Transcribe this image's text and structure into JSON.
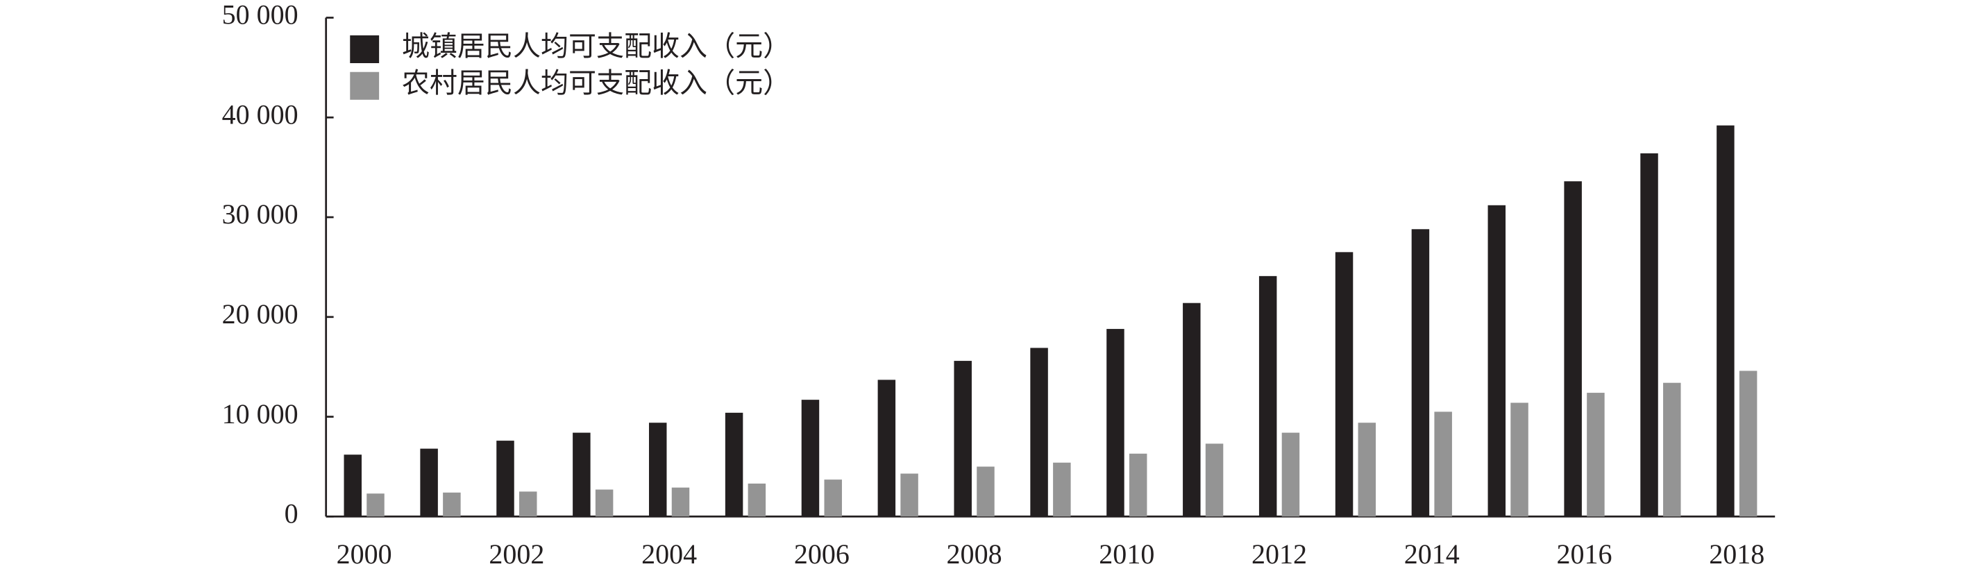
{
  "chart_data": {
    "type": "bar",
    "categories": [
      "2000",
      null,
      "2002",
      null,
      "2004",
      null,
      "2006",
      null,
      "2008",
      null,
      "2010",
      null,
      "2012",
      null,
      "2014",
      null,
      "2016",
      null,
      "2018"
    ],
    "series": [
      {
        "name": "城镇居民人均可支配收入（元）",
        "color": "#231f20",
        "values": [
          6200,
          6800,
          7600,
          8400,
          9400,
          10400,
          11700,
          13700,
          15600,
          16900,
          18800,
          21400,
          24100,
          26500,
          28800,
          31200,
          33600,
          36400,
          39200
        ]
      },
      {
        "name": "农村居民人均可支配收入（元）",
        "color": "#949494",
        "values": [
          2300,
          2400,
          2500,
          2700,
          2900,
          3300,
          3700,
          4300,
          5000,
          5400,
          6300,
          7300,
          8400,
          9400,
          10500,
          11400,
          12400,
          13400,
          14600
        ]
      }
    ],
    "ylim": [
      0,
      50000
    ],
    "yticks": [
      0,
      {
        "value": 10000,
        "label": "10 000"
      },
      {
        "value": 20000,
        "label": "20 000"
      },
      {
        "value": 30000,
        "label": "30 000"
      },
      {
        "value": 40000,
        "label": "40 000"
      },
      {
        "value": 50000,
        "label": "50 000"
      }
    ],
    "legend": "upper left"
  }
}
